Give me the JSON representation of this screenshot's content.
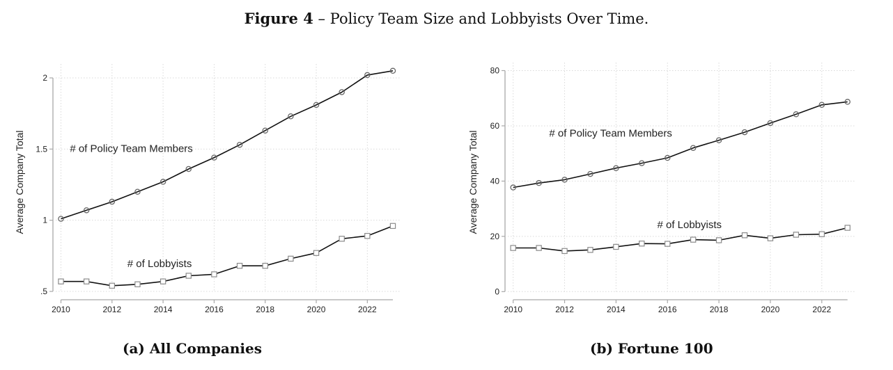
{
  "figure": {
    "label": "Figure 4",
    "separator": " – ",
    "title": "Policy Team Size and Lobbyists Over Time."
  },
  "chart_data": [
    {
      "id": "a",
      "type": "line",
      "subcaption": "(a) All Companies",
      "xlabel": "",
      "ylabel": "Average Company Total",
      "x": [
        2010,
        2011,
        2012,
        2013,
        2014,
        2015,
        2016,
        2017,
        2018,
        2019,
        2020,
        2021,
        2022,
        2023
      ],
      "xticks": [
        2010,
        2012,
        2014,
        2016,
        2018,
        2020,
        2022
      ],
      "xtick_labels": [
        "2010",
        "2012",
        "2014",
        "2016",
        "2018",
        "2020",
        "2022"
      ],
      "yticks": [
        0.5,
        1,
        1.5,
        2
      ],
      "ytick_labels": [
        ".5",
        "1",
        "1.5",
        "2"
      ],
      "ylim": [
        0.5,
        2.0
      ],
      "grid": true,
      "legend": "none (inline annotations)",
      "series": [
        {
          "name": "# of Policy Team Members",
          "marker": "circle",
          "values": [
            1.01,
            1.07,
            1.13,
            1.2,
            1.27,
            1.36,
            1.44,
            1.53,
            1.63,
            1.73,
            1.81,
            1.9,
            2.02,
            2.05
          ]
        },
        {
          "name": "# of Lobbyists",
          "marker": "square",
          "values": [
            0.57,
            0.57,
            0.54,
            0.55,
            0.57,
            0.61,
            0.62,
            0.68,
            0.68,
            0.73,
            0.77,
            0.87,
            0.89,
            0.96
          ]
        }
      ],
      "annotations": [
        {
          "text": "# of Policy Team Members",
          "x": 2010.35,
          "y": 1.48
        },
        {
          "text": "# of Lobbyists",
          "x": 2012.6,
          "y": 0.67
        }
      ]
    },
    {
      "id": "b",
      "type": "line",
      "subcaption": "(b) Fortune 100",
      "xlabel": "",
      "ylabel": "Average Company Total",
      "x": [
        2010,
        2011,
        2012,
        2013,
        2014,
        2015,
        2016,
        2017,
        2018,
        2019,
        2020,
        2021,
        2022,
        2023
      ],
      "xticks": [
        2010,
        2012,
        2014,
        2016,
        2018,
        2020,
        2022
      ],
      "xtick_labels": [
        "2010",
        "2012",
        "2014",
        "2016",
        "2018",
        "2020",
        "2022"
      ],
      "yticks": [
        0,
        20,
        40,
        60,
        80
      ],
      "ytick_labels": [
        "0",
        "20",
        "40",
        "60",
        "80"
      ],
      "ylim": [
        0,
        80
      ],
      "grid": true,
      "legend": "none (inline annotations)",
      "series": [
        {
          "name": "# of Policy Team Members",
          "marker": "circle",
          "values": [
            37.7,
            39.3,
            40.5,
            42.6,
            44.7,
            46.5,
            48.4,
            52.0,
            54.8,
            57.7,
            61.0,
            64.2,
            67.6,
            68.7
          ]
        },
        {
          "name": "# of Lobbyists",
          "marker": "square",
          "values": [
            15.8,
            15.8,
            14.7,
            15.1,
            16.2,
            17.4,
            17.3,
            18.8,
            18.6,
            20.4,
            19.3,
            20.6,
            20.8,
            23.1
          ]
        }
      ],
      "annotations": [
        {
          "text": "# of Policy Team Members",
          "x": 2011.4,
          "y": 56.1
        },
        {
          "text": "# of Lobbyists",
          "x": 2015.6,
          "y": 23.0
        }
      ]
    }
  ]
}
